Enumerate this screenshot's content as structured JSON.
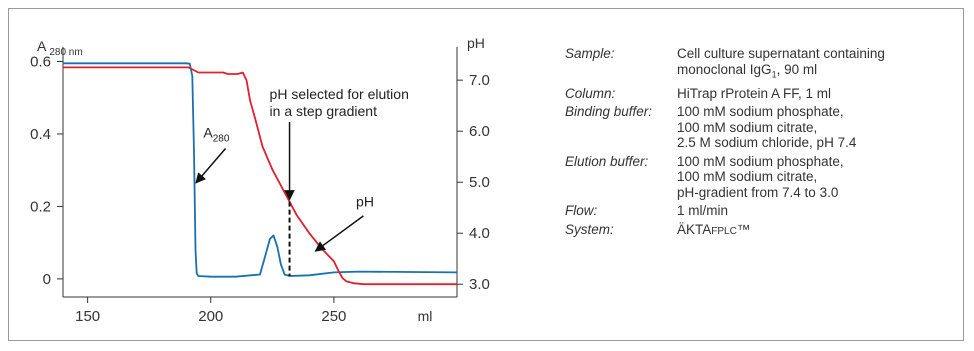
{
  "chart_data": {
    "type": "line",
    "xlabel": "ml",
    "ylabel_left_main": "A",
    "ylabel_left_sub": "280 nm",
    "ylabel_right": "pH",
    "xlim": [
      140,
      300
    ],
    "ylim_left": [
      -0.05,
      0.64
    ],
    "ylim_right": [
      2.75,
      7.65
    ],
    "x_ticks": [
      150,
      200,
      250
    ],
    "y_left_ticks": [
      "0",
      "0.2",
      "0.4",
      "0.6"
    ],
    "y_left_tick_values": [
      0,
      0.2,
      0.4,
      0.6
    ],
    "y_right_ticks": [
      "3.0",
      "4.0",
      "5.0",
      "6.0",
      "7.0"
    ],
    "y_right_tick_values": [
      3.0,
      4.0,
      5.0,
      6.0,
      7.0
    ],
    "series": [
      {
        "name": "A280",
        "color": "#1a6fb0",
        "axis": "left",
        "x": [
          140,
          190,
          191.5,
          192.5,
          193.2,
          193.8,
          194.3,
          195,
          200,
          210,
          220,
          222,
          224,
          225.5,
          227,
          228.5,
          230,
          232,
          240,
          250,
          260,
          300
        ],
        "y": [
          0.595,
          0.595,
          0.594,
          0.56,
          0.35,
          0.08,
          0.015,
          0.008,
          0.006,
          0.006,
          0.012,
          0.06,
          0.11,
          0.12,
          0.09,
          0.04,
          0.012,
          0.008,
          0.01,
          0.018,
          0.02,
          0.018
        ]
      },
      {
        "name": "pH",
        "color": "#e0202e",
        "axis": "right",
        "x": [
          140,
          191,
          193,
          195,
          205,
          207,
          211,
          213,
          214.5,
          216,
          218,
          221,
          225,
          230,
          235,
          240,
          245,
          248,
          250,
          252,
          253.5,
          255,
          258,
          262,
          300
        ],
        "y": [
          7.25,
          7.25,
          7.2,
          7.15,
          7.15,
          7.12,
          7.12,
          7.15,
          7.0,
          6.6,
          6.25,
          5.7,
          5.25,
          4.8,
          4.35,
          4.0,
          3.7,
          3.55,
          3.45,
          3.25,
          3.12,
          3.06,
          3.02,
          3.0,
          3.0
        ]
      }
    ],
    "annotations": {
      "elution_line1": "pH selected for elution",
      "elution_line2": "in a step gradient",
      "elution_x": 232,
      "a280_main": "A",
      "a280_sub": "280",
      "ph_label": "pH"
    }
  },
  "info": [
    {
      "key": "Sample:",
      "value": "Cell culture supernatant containing\nmonoclonal IgG",
      "value_sub": "1",
      "value_tail": ", 90 ml"
    },
    {
      "key": "Column:",
      "value": "HiTrap rProtein A FF, 1 ml"
    },
    {
      "key": "Binding buffer:",
      "value": "100 mM sodium phosphate,\n100 mM sodium citrate,\n2.5 M sodium chloride, pH 7.4"
    },
    {
      "key": "Elution buffer:",
      "value": "100 mM sodium phosphate,\n100 mM sodium citrate,\npH-gradient from 7.4 to 3.0"
    },
    {
      "key": "Flow:",
      "value": "1 ml/min"
    },
    {
      "key": "System:",
      "value": "ÄKTA",
      "value_small": "FPLC",
      "value_tail": "™"
    }
  ]
}
